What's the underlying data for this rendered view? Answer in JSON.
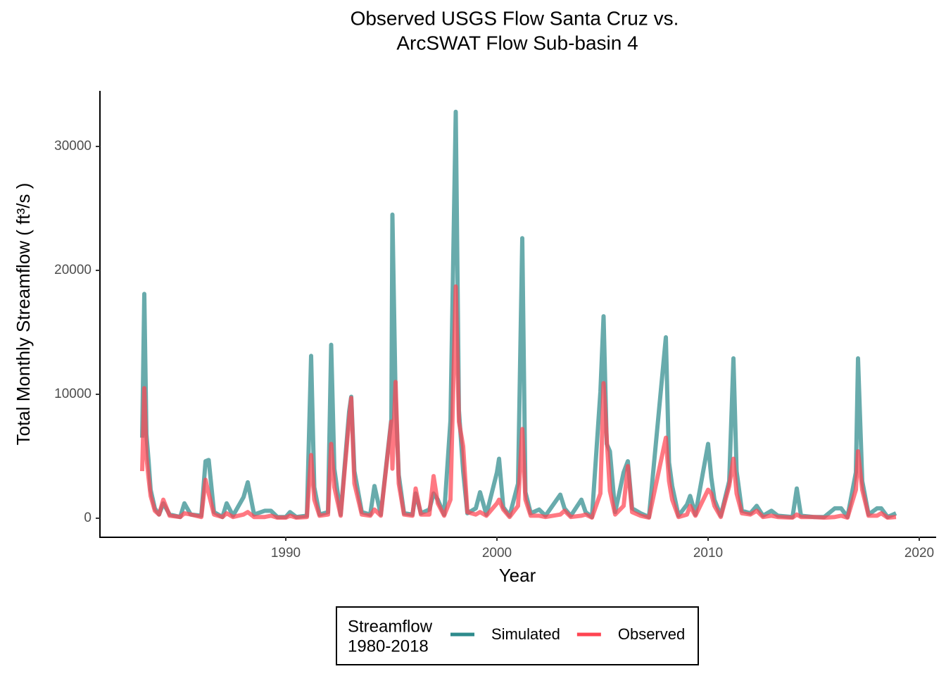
{
  "chart_data": {
    "type": "line",
    "title": [
      "Observed USGS Flow Santa Cruz vs.",
      "ArcSWAT Flow Sub-basin 4"
    ],
    "x_label": "Year",
    "y_label": "Total Monthly Streamflow ( ft³/s )",
    "legend_title": [
      "Streamflow",
      "1980-2018"
    ],
    "legend_position": "bottom",
    "grid": false,
    "xlim": [
      1981.2,
      2020.8
    ],
    "ylim": [
      -1480,
      34430
    ],
    "xticks": [
      1990,
      2000,
      2010,
      2020
    ],
    "yticks": [
      0,
      10000,
      20000,
      30000
    ],
    "x": [
      1983.2,
      1983.3,
      1983.4,
      1983.5,
      1983.6,
      1983.8,
      1984.0,
      1984.2,
      1984.5,
      1985.0,
      1985.2,
      1985.5,
      1986.0,
      1986.2,
      1986.35,
      1986.6,
      1987.0,
      1987.2,
      1987.5,
      1988.0,
      1988.2,
      1988.5,
      1989.0,
      1989.3,
      1989.6,
      1990.0,
      1990.2,
      1990.5,
      1991.0,
      1991.2,
      1991.35,
      1991.6,
      1992.0,
      1992.15,
      1992.3,
      1992.6,
      1993.0,
      1993.1,
      1993.25,
      1993.6,
      1994.0,
      1994.2,
      1994.5,
      1995.0,
      1995.05,
      1995.2,
      1995.35,
      1995.6,
      1996.0,
      1996.15,
      1996.4,
      1996.8,
      1997.0,
      1997.2,
      1997.5,
      1997.8,
      1998.05,
      1998.2,
      1998.4,
      1998.6,
      1999.0,
      1999.2,
      1999.5,
      2000.0,
      2000.1,
      2000.3,
      2000.6,
      2001.0,
      2001.2,
      2001.35,
      2001.6,
      2002.0,
      2002.3,
      2003.0,
      2003.2,
      2003.5,
      2004.0,
      2004.2,
      2004.5,
      2004.9,
      2005.05,
      2005.2,
      2005.35,
      2005.6,
      2006.0,
      2006.2,
      2006.4,
      2006.8,
      2007.2,
      2008.0,
      2008.15,
      2008.3,
      2008.6,
      2009.0,
      2009.15,
      2009.4,
      2010.0,
      2010.15,
      2010.3,
      2010.6,
      2011.0,
      2011.2,
      2011.35,
      2011.6,
      2012.0,
      2012.3,
      2012.6,
      2013.0,
      2013.3,
      2014.0,
      2014.2,
      2014.4,
      2015.0,
      2015.5,
      2016.0,
      2016.3,
      2016.6,
      2017.0,
      2017.1,
      2017.3,
      2017.6,
      2018.0,
      2018.2,
      2018.5,
      2018.9
    ],
    "series": [
      {
        "name": "Simulated",
        "color": "#2e8b8c",
        "values": [
          6500,
          18100,
          6800,
          4700,
          2300,
          800,
          300,
          1200,
          300,
          100,
          1200,
          300,
          200,
          4600,
          4700,
          500,
          100,
          1200,
          200,
          1700,
          2900,
          300,
          600,
          600,
          100,
          100,
          500,
          100,
          200,
          13100,
          2500,
          300,
          500,
          14000,
          4000,
          300,
          8600,
          9800,
          3800,
          500,
          300,
          2600,
          300,
          8000,
          24500,
          9800,
          3500,
          400,
          300,
          2000,
          400,
          700,
          2000,
          1500,
          300,
          7900,
          32800,
          8700,
          3800,
          400,
          800,
          2100,
          300,
          3700,
          4800,
          900,
          200,
          2800,
          22600,
          2100,
          400,
          700,
          200,
          1900,
          800,
          200,
          1500,
          500,
          100,
          10200,
          16300,
          6000,
          5400,
          500,
          3700,
          4600,
          800,
          400,
          100,
          14600,
          4500,
          2600,
          200,
          1100,
          1800,
          300,
          6000,
          3300,
          1500,
          200,
          3000,
          12900,
          3800,
          600,
          400,
          1000,
          200,
          600,
          200,
          100,
          2400,
          200,
          100,
          100,
          800,
          800,
          100,
          3700,
          12900,
          3000,
          300,
          800,
          800,
          100,
          400
        ]
      },
      {
        "name": "Observed",
        "color": "#ff4452",
        "values": [
          3800,
          10500,
          5000,
          3300,
          1800,
          600,
          300,
          1500,
          200,
          100,
          400,
          300,
          100,
          3100,
          2000,
          300,
          100,
          400,
          100,
          300,
          500,
          100,
          100,
          200,
          50,
          50,
          200,
          50,
          100,
          5100,
          1500,
          200,
          300,
          6000,
          2500,
          200,
          8000,
          9700,
          2800,
          300,
          200,
          700,
          200,
          7800,
          4000,
          11000,
          2800,
          300,
          200,
          2400,
          300,
          300,
          3400,
          1200,
          200,
          1500,
          18700,
          7800,
          5800,
          500,
          300,
          500,
          200,
          1200,
          1500,
          700,
          100,
          1000,
          7200,
          1500,
          200,
          200,
          100,
          300,
          600,
          100,
          200,
          300,
          50,
          2000,
          10900,
          6400,
          2200,
          300,
          1000,
          4200,
          500,
          200,
          50,
          6500,
          3000,
          1500,
          100,
          300,
          1000,
          200,
          2300,
          2000,
          1000,
          100,
          2600,
          4800,
          2000,
          400,
          300,
          600,
          100,
          200,
          100,
          50,
          300,
          100,
          100,
          50,
          100,
          200,
          50,
          2300,
          5400,
          2300,
          200,
          200,
          400,
          50,
          100
        ]
      }
    ]
  }
}
